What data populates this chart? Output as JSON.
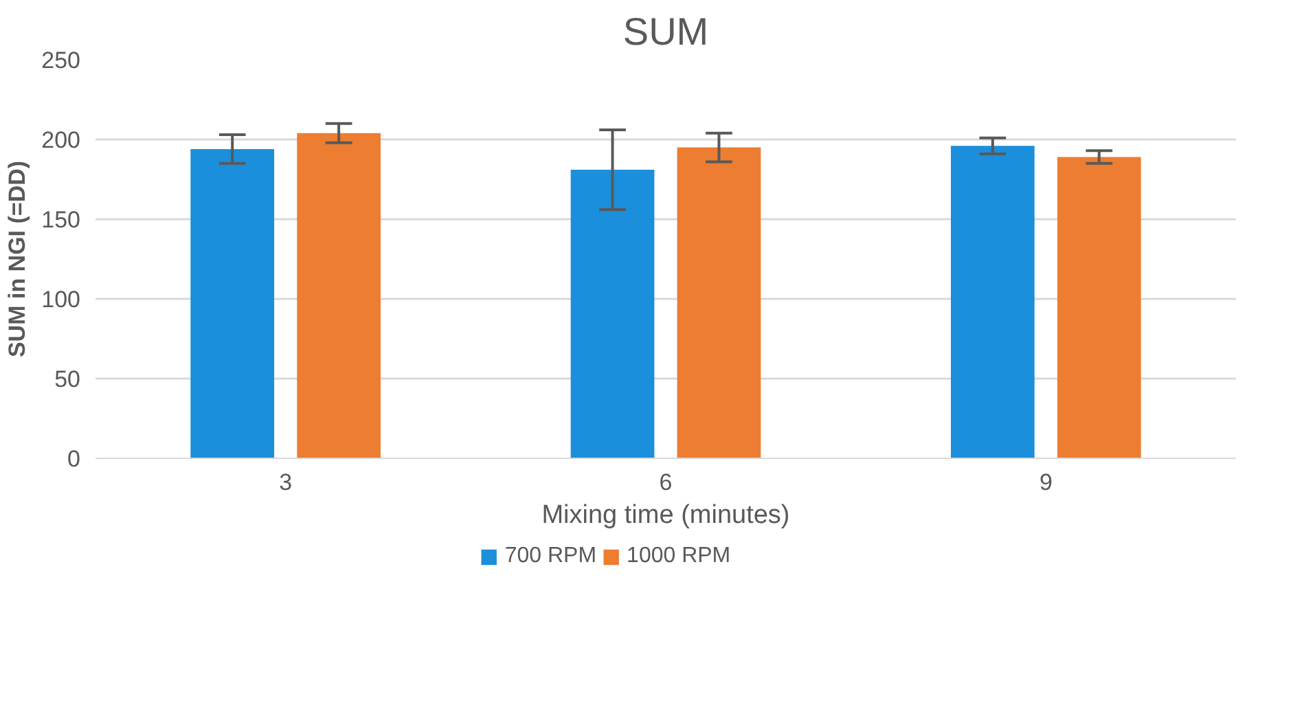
{
  "chart_data": {
    "type": "bar",
    "title": "SUM",
    "xlabel": "Mixing time (minutes)",
    "ylabel": "SUM in NGI (=DD)",
    "categories": [
      "3",
      "6",
      "9"
    ],
    "series": [
      {
        "name": "700 RPM",
        "color": "#1b8fdb",
        "values": [
          194,
          181,
          196
        ],
        "errors": [
          9,
          25,
          5
        ]
      },
      {
        "name": "1000 RPM",
        "color": "#ed7d31",
        "values": [
          204,
          195,
          189
        ],
        "errors": [
          6,
          9,
          4
        ]
      }
    ],
    "ylim": [
      0,
      250
    ],
    "yticks": [
      0,
      50,
      100,
      150,
      200,
      250
    ],
    "grid": "y",
    "legend": "bottom"
  }
}
